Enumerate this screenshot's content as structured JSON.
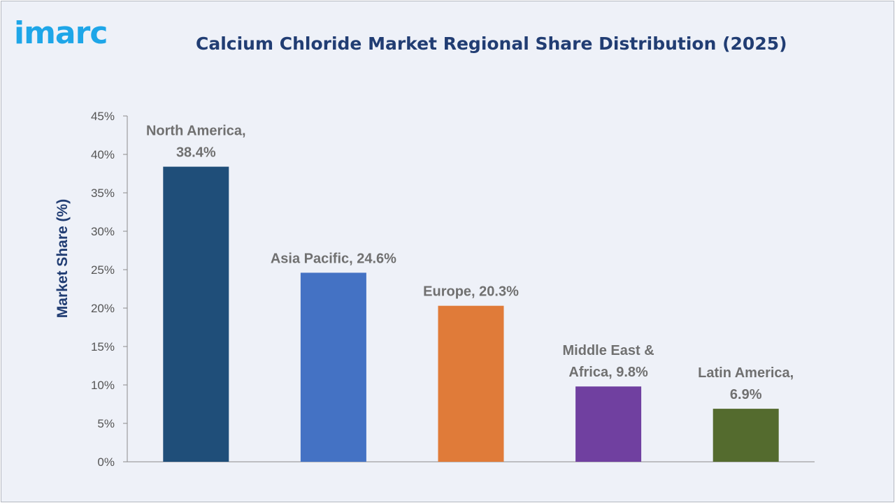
{
  "brand": {
    "logo_text": "imarc",
    "color": "#1ea6e8"
  },
  "chart_data": {
    "type": "bar",
    "title": "Calcium Chloride Market Regional Share Distribution (2025)",
    "xlabel": "",
    "ylabel": "Market Share (%)",
    "ylim": [
      0,
      45
    ],
    "yticks": [
      0,
      5,
      10,
      15,
      20,
      25,
      30,
      35,
      40,
      45
    ],
    "ytick_labels": [
      "0%",
      "5%",
      "10%",
      "15%",
      "20%",
      "25%",
      "30%",
      "35%",
      "40%",
      "45%"
    ],
    "grid": false,
    "legend": "none",
    "categories": [
      "North America",
      "Asia Pacific",
      "Europe",
      "Middle East & Africa",
      "Latin America"
    ],
    "values": [
      38.4,
      24.6,
      20.3,
      9.8,
      6.9
    ],
    "data_labels": [
      [
        "North America,",
        "38.4%"
      ],
      [
        "Asia Pacific, 24.6%"
      ],
      [
        "Europe, 20.3%"
      ],
      [
        "Middle East &",
        "Africa, 9.8%"
      ],
      [
        "Latin America,",
        "6.9%"
      ]
    ],
    "colors": [
      "#1f4e79",
      "#4472c4",
      "#e07b39",
      "#7040a0",
      "#546b2e"
    ]
  }
}
